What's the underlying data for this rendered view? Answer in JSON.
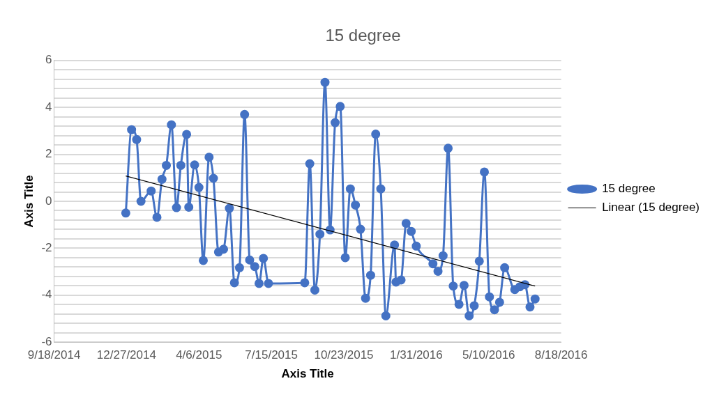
{
  "chart_data": {
    "type": "line",
    "title": "15 degree",
    "xlabel": "Axis Title",
    "ylabel": "Axis Title",
    "x": [
      "2014-12-26",
      "2015-01-03",
      "2015-01-10",
      "2015-01-16",
      "2015-01-30",
      "2015-02-07",
      "2015-02-14",
      "2015-02-20",
      "2015-02-27",
      "2015-03-06",
      "2015-03-12",
      "2015-03-20",
      "2015-03-23",
      "2015-03-31",
      "2015-04-06",
      "2015-04-12",
      "2015-04-20",
      "2015-04-26",
      "2015-05-03",
      "2015-05-10",
      "2015-05-18",
      "2015-05-25",
      "2015-06-01",
      "2015-06-08",
      "2015-06-15",
      "2015-06-22",
      "2015-06-28",
      "2015-07-04",
      "2015-07-11",
      "2015-08-30",
      "2015-09-06",
      "2015-09-13",
      "2015-09-20",
      "2015-09-27",
      "2015-10-04",
      "2015-10-11",
      "2015-10-18",
      "2015-10-25",
      "2015-11-01",
      "2015-11-08",
      "2015-11-15",
      "2015-11-22",
      "2015-11-29",
      "2015-12-06",
      "2015-12-13",
      "2015-12-20",
      "2016-01-01",
      "2016-01-03",
      "2016-01-10",
      "2016-01-17",
      "2016-01-24",
      "2016-01-31",
      "2016-02-23",
      "2016-03-01",
      "2016-03-08",
      "2016-03-15",
      "2016-03-22",
      "2016-03-30",
      "2016-04-06",
      "2016-04-13",
      "2016-04-20",
      "2016-04-27",
      "2016-05-04",
      "2016-05-11",
      "2016-05-18",
      "2016-05-25",
      "2016-06-01",
      "2016-06-15",
      "2016-06-22",
      "2016-06-29",
      "2016-07-06",
      "2016-07-13"
    ],
    "series": [
      {
        "name": "15 degree",
        "color": "#4472c4",
        "values": [
          -0.5,
          3.05,
          2.63,
          0,
          0.44,
          -0.68,
          0.94,
          1.53,
          3.26,
          -0.27,
          1.53,
          2.85,
          -0.25,
          1.55,
          0.59,
          -2.52,
          1.88,
          0.98,
          -2.16,
          -2.04,
          -0.3,
          -3.47,
          -2.83,
          3.7,
          -2.5,
          -2.78,
          -3.5,
          -2.43,
          -3.5,
          -3.47,
          1.6,
          -3.78,
          -1.4,
          5.07,
          -1.22,
          3.35,
          4.04,
          -2.4,
          0.53,
          -0.16,
          -1.19,
          -4.13,
          -3.15,
          2.86,
          0.53,
          -4.88,
          -1.86,
          -3.44,
          -3.35,
          -0.94,
          -1.28,
          -1.91,
          -2.66,
          -2.98,
          -2.32,
          2.26,
          -3.61,
          -4.39,
          -3.58,
          -4.88,
          -4.45,
          -2.55,
          1.25,
          -4.07,
          -4.62,
          -4.3,
          -2.83,
          -3.76,
          -3.64,
          -3.55,
          -4.5,
          -4.16
        ]
      },
      {
        "name": "Linear (15 degree)",
        "color": "#000000",
        "type": "line",
        "marker": "none",
        "x": [
          "2014-12-26",
          "2016-07-13"
        ],
        "values": [
          1.08,
          -3.61
        ]
      }
    ],
    "xlim": [
      "2014-09-18",
      "2016-08-18"
    ],
    "xticks": [
      {
        "value": "2014-09-18",
        "label": "9/18/2014"
      },
      {
        "value": "2014-12-27",
        "label": "12/27/2014"
      },
      {
        "value": "2015-04-06",
        "label": "4/6/2015"
      },
      {
        "value": "2015-07-15",
        "label": "7/15/2015"
      },
      {
        "value": "2015-10-23",
        "label": "10/23/2015"
      },
      {
        "value": "2016-01-31",
        "label": "1/31/2016"
      },
      {
        "value": "2016-05-10",
        "label": "5/10/2016"
      },
      {
        "value": "2016-08-18",
        "label": "8/18/2016"
      }
    ],
    "ylim": [
      -6,
      6
    ],
    "yticks": [
      -6,
      {
        "value": -5.6,
        "label": null
      },
      {
        "value": -5.2,
        "label": null
      },
      {
        "value": -4.8,
        "label": null
      },
      {
        "value": -4.4,
        "label": null
      },
      -4,
      {
        "value": -3.6,
        "label": null
      },
      {
        "value": -3.2,
        "label": null
      },
      {
        "value": -2.8,
        "label": null
      },
      {
        "value": -2.4,
        "label": null
      },
      -2,
      {
        "value": -1.6,
        "label": null
      },
      {
        "value": -1.2,
        "label": null
      },
      {
        "value": -0.8,
        "label": null
      },
      {
        "value": -0.4,
        "label": null
      },
      0,
      {
        "value": 0.4,
        "label": null
      },
      {
        "value": 0.8,
        "label": null
      },
      {
        "value": 1.2,
        "label": null
      },
      {
        "value": 1.6,
        "label": null
      },
      2,
      {
        "value": 2.4,
        "label": null
      },
      {
        "value": 2.8,
        "label": null
      },
      {
        "value": 3.2,
        "label": null
      },
      {
        "value": 3.6,
        "label": null
      },
      4,
      {
        "value": 4.4,
        "label": null
      },
      {
        "value": 4.8,
        "label": null
      },
      {
        "value": 5.2,
        "label": null
      },
      {
        "value": 5.6,
        "label": null
      },
      6
    ],
    "grid": "y",
    "legend": "right",
    "marker": "circle"
  }
}
